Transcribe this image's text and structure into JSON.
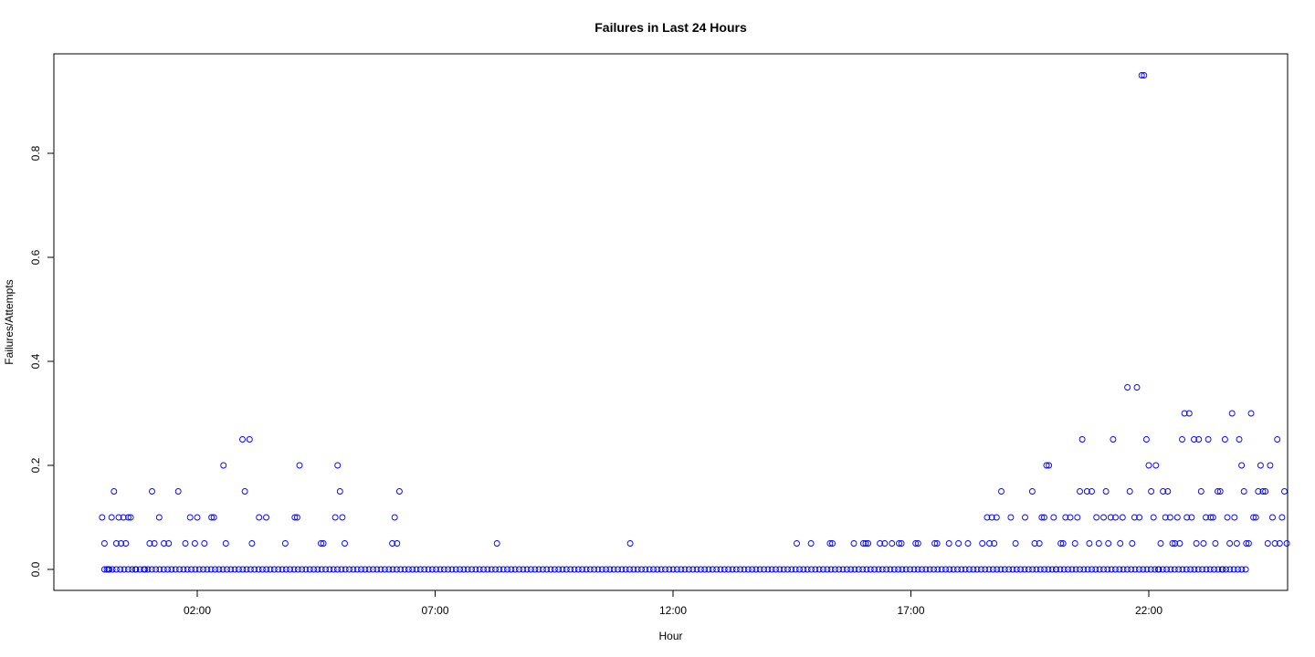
{
  "chart_data": {
    "type": "scatter",
    "title": "Failures in Last 24 Hours",
    "xlabel": "Hour",
    "ylabel": "Failures/Attempts",
    "x_unit": "hours",
    "xlim": [
      -0.6,
      25.3
    ],
    "ylim": [
      -0.04,
      0.99
    ],
    "x_ticks": [
      2,
      7,
      12,
      17,
      22
    ],
    "x_tick_labels": [
      "02:00",
      "07:00",
      "12:00",
      "17:00",
      "22:00"
    ],
    "y_ticks": [
      0.0,
      0.2,
      0.4,
      0.6,
      0.8
    ],
    "y_tick_labels": [
      "0.0",
      "0.2",
      "0.4",
      "0.6",
      "0.8"
    ],
    "grid": false,
    "marker": "open circle",
    "point_color": "#0000ff",
    "zero_run": {
      "x_start": 0.05,
      "x_end": 24.1,
      "step": 0.083,
      "y": 0
    },
    "points": [
      [
        0.0,
        0.1
      ],
      [
        0.05,
        0.05
      ],
      [
        0.1,
        0
      ],
      [
        0.15,
        0
      ],
      [
        0.2,
        0.1
      ],
      [
        0.25,
        0.15
      ],
      [
        0.3,
        0.05
      ],
      [
        0.35,
        0.1
      ],
      [
        0.4,
        0.05
      ],
      [
        0.45,
        0.1
      ],
      [
        0.5,
        0.05
      ],
      [
        0.55,
        0.1
      ],
      [
        0.6,
        0.1
      ],
      [
        0.7,
        0
      ],
      [
        0.9,
        0
      ],
      [
        1.0,
        0.05
      ],
      [
        1.05,
        0.15
      ],
      [
        1.1,
        0.05
      ],
      [
        1.2,
        0.1
      ],
      [
        1.3,
        0.05
      ],
      [
        1.4,
        0.05
      ],
      [
        1.6,
        0.15
      ],
      [
        1.75,
        0.05
      ],
      [
        1.85,
        0.1
      ],
      [
        1.95,
        0.05
      ],
      [
        2.0,
        0.1
      ],
      [
        2.15,
        0.05
      ],
      [
        2.3,
        0.1
      ],
      [
        2.35,
        0.1
      ],
      [
        2.55,
        0.2
      ],
      [
        2.6,
        0.05
      ],
      [
        2.95,
        0.25
      ],
      [
        3.0,
        0.15
      ],
      [
        3.1,
        0.25
      ],
      [
        3.15,
        0.05
      ],
      [
        3.3,
        0.1
      ],
      [
        3.45,
        0.1
      ],
      [
        3.85,
        0.05
      ],
      [
        4.05,
        0.1
      ],
      [
        4.1,
        0.1
      ],
      [
        4.15,
        0.2
      ],
      [
        4.6,
        0.05
      ],
      [
        4.65,
        0.05
      ],
      [
        4.9,
        0.1
      ],
      [
        4.95,
        0.2
      ],
      [
        5.0,
        0.15
      ],
      [
        5.05,
        0.1
      ],
      [
        5.1,
        0.05
      ],
      [
        6.1,
        0.05
      ],
      [
        6.15,
        0.1
      ],
      [
        6.2,
        0.05
      ],
      [
        6.25,
        0.15
      ],
      [
        8.3,
        0.05
      ],
      [
        11.1,
        0.05
      ],
      [
        14.6,
        0.05
      ],
      [
        14.9,
        0.05
      ],
      [
        15.3,
        0.05
      ],
      [
        15.35,
        0.05
      ],
      [
        15.8,
        0.05
      ],
      [
        16.0,
        0.05
      ],
      [
        16.05,
        0.05
      ],
      [
        16.1,
        0.05
      ],
      [
        16.35,
        0.05
      ],
      [
        16.45,
        0.05
      ],
      [
        16.6,
        0.05
      ],
      [
        16.75,
        0.05
      ],
      [
        16.8,
        0.05
      ],
      [
        17.1,
        0.05
      ],
      [
        17.15,
        0.05
      ],
      [
        17.5,
        0.05
      ],
      [
        17.55,
        0.05
      ],
      [
        17.8,
        0.05
      ],
      [
        18.0,
        0.05
      ],
      [
        18.2,
        0.05
      ],
      [
        18.5,
        0.05
      ],
      [
        18.6,
        0.1
      ],
      [
        18.65,
        0.05
      ],
      [
        18.7,
        0.1
      ],
      [
        18.75,
        0.05
      ],
      [
        18.8,
        0.1
      ],
      [
        18.9,
        0.15
      ],
      [
        19.1,
        0.1
      ],
      [
        19.2,
        0.05
      ],
      [
        19.4,
        0.1
      ],
      [
        19.55,
        0.15
      ],
      [
        19.6,
        0.05
      ],
      [
        19.7,
        0.05
      ],
      [
        19.75,
        0.1
      ],
      [
        19.8,
        0.1
      ],
      [
        19.85,
        0.2
      ],
      [
        19.9,
        0.2
      ],
      [
        20.0,
        0.1
      ],
      [
        20.05,
        0
      ],
      [
        20.15,
        0.05
      ],
      [
        20.2,
        0.05
      ],
      [
        20.25,
        0.1
      ],
      [
        20.35,
        0.1
      ],
      [
        20.45,
        0.05
      ],
      [
        20.5,
        0.1
      ],
      [
        20.55,
        0.15
      ],
      [
        20.6,
        0.25
      ],
      [
        20.7,
        0.15
      ],
      [
        20.75,
        0.05
      ],
      [
        20.8,
        0.15
      ],
      [
        20.9,
        0.1
      ],
      [
        20.95,
        0.05
      ],
      [
        21.05,
        0.1
      ],
      [
        21.1,
        0.15
      ],
      [
        21.15,
        0.05
      ],
      [
        21.2,
        0.1
      ],
      [
        21.25,
        0.25
      ],
      [
        21.3,
        0.1
      ],
      [
        21.4,
        0.05
      ],
      [
        21.45,
        0.1
      ],
      [
        21.55,
        0.35
      ],
      [
        21.6,
        0.15
      ],
      [
        21.65,
        0.05
      ],
      [
        21.7,
        0.1
      ],
      [
        21.75,
        0.35
      ],
      [
        21.8,
        0.1
      ],
      [
        21.85,
        0.95
      ],
      [
        21.9,
        0.95
      ],
      [
        21.95,
        0.25
      ],
      [
        22.0,
        0.2
      ],
      [
        22.05,
        0.15
      ],
      [
        22.1,
        0.1
      ],
      [
        22.15,
        0.2
      ],
      [
        22.2,
        0
      ],
      [
        22.25,
        0.05
      ],
      [
        22.3,
        0.15
      ],
      [
        22.35,
        0.1
      ],
      [
        22.4,
        0.15
      ],
      [
        22.45,
        0.1
      ],
      [
        22.5,
        0.05
      ],
      [
        22.55,
        0.05
      ],
      [
        22.6,
        0.1
      ],
      [
        22.65,
        0.05
      ],
      [
        22.7,
        0.25
      ],
      [
        22.75,
        0.3
      ],
      [
        22.8,
        0.1
      ],
      [
        22.85,
        0.3
      ],
      [
        22.9,
        0.1
      ],
      [
        22.95,
        0.25
      ],
      [
        23.0,
        0.05
      ],
      [
        23.05,
        0.25
      ],
      [
        23.1,
        0.15
      ],
      [
        23.15,
        0.05
      ],
      [
        23.2,
        0.1
      ],
      [
        23.25,
        0.25
      ],
      [
        23.3,
        0.1
      ],
      [
        23.35,
        0.1
      ],
      [
        23.4,
        0.05
      ],
      [
        23.45,
        0.15
      ],
      [
        23.5,
        0.15
      ],
      [
        23.55,
        0
      ],
      [
        23.6,
        0.25
      ],
      [
        23.65,
        0.1
      ],
      [
        23.7,
        0.05
      ],
      [
        23.75,
        0.3
      ],
      [
        23.8,
        0.1
      ],
      [
        23.85,
        0.05
      ],
      [
        23.9,
        0.25
      ],
      [
        23.95,
        0.2
      ],
      [
        24.0,
        0.15
      ],
      [
        24.05,
        0.05
      ],
      [
        24.1,
        0.05
      ],
      [
        24.15,
        0.3
      ],
      [
        24.2,
        0.1
      ],
      [
        24.25,
        0.1
      ],
      [
        24.3,
        0.15
      ],
      [
        24.35,
        0.2
      ],
      [
        24.4,
        0.15
      ],
      [
        24.45,
        0.15
      ],
      [
        24.5,
        0.05
      ],
      [
        24.55,
        0.2
      ],
      [
        24.6,
        0.1
      ],
      [
        24.65,
        0.05
      ],
      [
        24.7,
        0.25
      ],
      [
        24.75,
        0.05
      ],
      [
        24.8,
        0.1
      ],
      [
        24.85,
        0.15
      ],
      [
        24.9,
        0.05
      ]
    ]
  }
}
